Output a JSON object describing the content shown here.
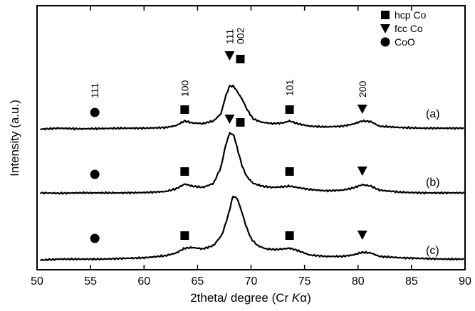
{
  "chart_data": {
    "type": "line",
    "xlabel": "2theta/ degree (Cr ",
    "xlabel_symbol": "K",
    "xlabel_suffix": "α)",
    "ylabel": "Intensity (a.u.)",
    "xlim": [
      50,
      90
    ],
    "xticks": [
      "50",
      "55",
      "60",
      "65",
      "70",
      "75",
      "80",
      "85",
      "90"
    ],
    "legend_position": "top-right",
    "legend": [
      {
        "label": "hcp Co",
        "marker": "square"
      },
      {
        "label": "fcc Co",
        "marker": "triangle"
      },
      {
        "label": "CoO",
        "marker": "circle"
      }
    ],
    "peak_labels": [
      {
        "text": "111",
        "x": 55.4
      },
      {
        "text": "100",
        "x": 63.8
      },
      {
        "text": "111",
        "x": 68.0
      },
      {
        "text": "002",
        "x": 69.0
      },
      {
        "text": "101",
        "x": 73.6
      },
      {
        "text": "200",
        "x": 80.4
      }
    ],
    "series": [
      {
        "name": "(a)",
        "baseline_y": 0.1,
        "x": [
          50.3,
          52,
          54,
          56,
          58,
          60,
          62,
          63,
          63.8,
          64.5,
          65.5,
          66.5,
          67.2,
          67.6,
          68.0,
          68.4,
          68.8,
          69.2,
          69.6,
          70.2,
          71,
          72,
          73,
          73.6,
          74.3,
          75.5,
          77,
          78.5,
          79.5,
          80.4,
          81.2,
          82,
          84,
          86,
          88,
          89.9
        ],
        "y": [
          0.15,
          0.3,
          0.2,
          0.25,
          0.3,
          0.3,
          0.4,
          0.7,
          1.4,
          1.1,
          1.0,
          1.4,
          2.5,
          5.0,
          6.7,
          6.6,
          5.6,
          4.6,
          3.2,
          1.7,
          1.2,
          1.0,
          1.1,
          1.4,
          1.0,
          0.6,
          0.5,
          0.6,
          0.9,
          1.4,
          1.3,
          0.6,
          0.4,
          0.3,
          0.3,
          0.3
        ],
        "markers": [
          {
            "type": "circle",
            "x": 55.4
          },
          {
            "type": "square",
            "x": 63.8
          },
          {
            "type": "triangle",
            "x": 68.0
          },
          {
            "type": "square",
            "x": 69.0
          },
          {
            "type": "square",
            "x": 73.6
          },
          {
            "type": "triangle",
            "x": 80.4
          }
        ]
      },
      {
        "name": "(b)",
        "baseline_y": 0.1,
        "x": [
          50.3,
          52,
          54,
          56,
          58,
          60,
          62,
          63,
          63.8,
          64.5,
          65.5,
          66.5,
          67.2,
          67.6,
          68.0,
          68.4,
          68.8,
          69.2,
          69.6,
          70.2,
          71,
          72,
          73,
          73.6,
          74.3,
          75.5,
          77,
          78.5,
          79.5,
          80.4,
          81.2,
          82,
          84,
          86,
          88,
          89.9
        ],
        "y": [
          0.2,
          0.15,
          0.2,
          0.2,
          0.2,
          0.25,
          0.4,
          0.8,
          1.5,
          1.2,
          1.0,
          1.6,
          4.0,
          7.0,
          9.0,
          8.6,
          6.2,
          4.0,
          2.6,
          1.6,
          1.2,
          1.0,
          1.1,
          1.2,
          1.0,
          0.7,
          0.5,
          0.6,
          0.9,
          1.4,
          1.2,
          0.6,
          0.3,
          0.2,
          0.2,
          0.2
        ],
        "markers": [
          {
            "type": "circle",
            "x": 55.4
          },
          {
            "type": "square",
            "x": 63.8
          },
          {
            "type": "triangle",
            "x": 68.0
          },
          {
            "type": "square",
            "x": 69.0
          },
          {
            "type": "square",
            "x": 73.6
          },
          {
            "type": "triangle",
            "x": 80.4
          }
        ]
      },
      {
        "name": "(c)",
        "baseline_y": 0.1,
        "x": [
          50.3,
          52,
          54,
          56,
          58,
          60,
          62,
          63,
          63.8,
          64.5,
          65.5,
          66.5,
          67.3,
          67.9,
          68.3,
          68.7,
          69.1,
          69.5,
          70.0,
          70.6,
          71.4,
          72.3,
          73,
          73.6,
          74.3,
          75.5,
          77,
          78.5,
          79.5,
          80.4,
          81.2,
          82,
          84,
          86,
          88,
          89.9
        ],
        "y": [
          0.25,
          0.4,
          0.4,
          0.4,
          0.5,
          0.6,
          0.9,
          1.3,
          2.0,
          2.1,
          1.9,
          2.4,
          4.0,
          7.0,
          9.6,
          9.3,
          7.5,
          5.4,
          3.4,
          2.4,
          1.9,
          1.8,
          1.9,
          2.0,
          1.7,
          1.0,
          0.8,
          0.8,
          1.0,
          1.4,
          1.3,
          0.8,
          0.6,
          0.5,
          0.4,
          0.4
        ],
        "markers": [
          {
            "type": "circle",
            "x": 55.4
          },
          {
            "type": "square",
            "x": 63.8
          },
          {
            "type": "square",
            "x": 73.6
          },
          {
            "type": "triangle",
            "x": 80.4
          }
        ]
      }
    ]
  }
}
